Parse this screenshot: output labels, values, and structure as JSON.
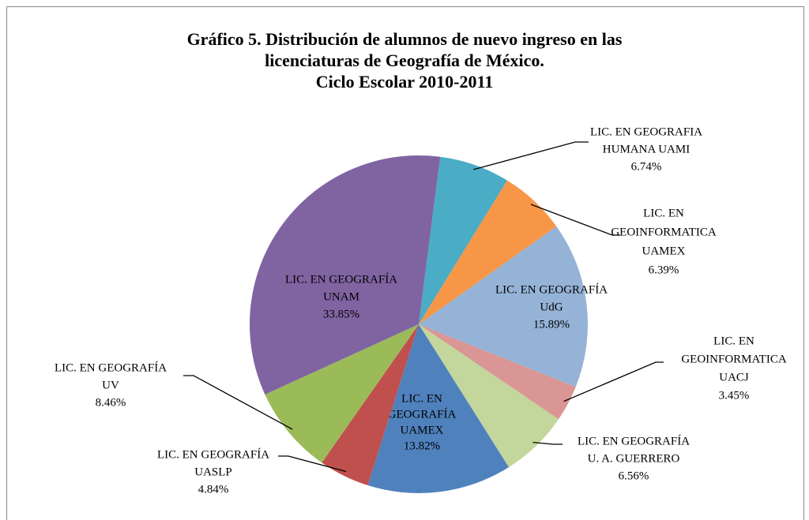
{
  "chart_data": {
    "type": "pie",
    "title": [
      "Gráfico 5. Distribución de alumnos de nuevo ingreso en las",
      "licenciaturas de Geografía de México.",
      "Ciclo Escolar 2010-2011"
    ],
    "categories": [
      [
        "LIC. EN GEOGRAFIA",
        "HUMANA  UAMI"
      ],
      [
        "LIC. EN",
        "GEOINFORMATICA",
        "UAMEX"
      ],
      [
        "LIC. EN GEOGRAFÍA",
        "UdG"
      ],
      [
        "LIC. EN",
        "GEOINFORMATICA",
        "UACJ"
      ],
      [
        "LIC. EN GEOGRAFÍA",
        "U. A. GUERRERO"
      ],
      [
        "LIC. EN",
        "GEOGRAFÍA",
        "UAMEX"
      ],
      [
        "LIC. EN GEOGRAFÍA",
        "UASLP"
      ],
      [
        "LIC. EN GEOGRAFÍA",
        "UV"
      ],
      [
        "LIC. EN GEOGRAFÍA",
        "UNAM"
      ]
    ],
    "values": [
      6.74,
      6.39,
      15.89,
      3.45,
      6.56,
      13.82,
      4.84,
      8.46,
      33.85
    ],
    "value_labels": [
      "6.74%",
      "6.39%",
      "15.89%",
      "3.45%",
      "6.56%",
      "13.82%",
      "4.84%",
      "8.46%",
      "33.85%"
    ],
    "colors": [
      "#4bacc6",
      "#f79646",
      "#95b3d7",
      "#d99694",
      "#c3d69b",
      "#4f81bd",
      "#c0504d",
      "#9bbb59",
      "#8064a2"
    ]
  }
}
